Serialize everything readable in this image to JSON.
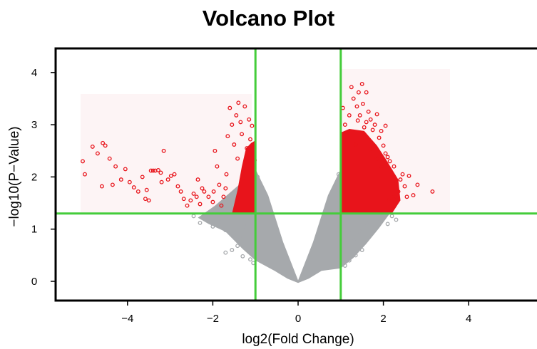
{
  "chart_data": {
    "type": "scatter",
    "title": "Volcano Plot",
    "xlabel": "log2(Fold Change)",
    "ylabel": "−log10(P−Value)",
    "xlim": [
      -5.6,
      5.6
    ],
    "ylim": [
      -0.3,
      4.5
    ],
    "x_ticks": [
      -4,
      -2,
      0,
      2,
      4
    ],
    "x_tick_labels": [
      "−4",
      "−2",
      "0",
      "2",
      "4"
    ],
    "y_ticks": [
      0,
      1,
      2,
      3,
      4
    ],
    "y_tick_labels": [
      "0",
      "1",
      "2",
      "3",
      "4"
    ],
    "grid": false,
    "thresholds": {
      "fold_change_log2": [
        -1,
        1
      ],
      "neg_log10_p": 1.3
    },
    "colors": {
      "significant": "#e8141b",
      "non_significant": "#a6a9ac",
      "threshold_lines": "#44cc3a",
      "axes": "#000000"
    },
    "series": [
      {
        "color": "#e8141b",
        "points": [
          [
            -5.05,
            2.3
          ],
          [
            -5.0,
            2.05
          ],
          [
            -4.82,
            2.58
          ],
          [
            -4.7,
            2.45
          ],
          [
            -4.58,
            2.65
          ],
          [
            -4.52,
            2.6
          ],
          [
            -4.42,
            2.35
          ],
          [
            -4.28,
            2.2
          ],
          [
            -4.15,
            1.95
          ],
          [
            -4.05,
            2.15
          ],
          [
            -3.95,
            1.9
          ],
          [
            -3.85,
            1.8
          ],
          [
            -3.75,
            1.72
          ],
          [
            -3.65,
            2.0
          ],
          [
            -3.55,
            1.75
          ],
          [
            -3.45,
            2.12
          ],
          [
            -3.4,
            2.12
          ],
          [
            -3.35,
            2.12
          ],
          [
            -3.28,
            2.13
          ],
          [
            -3.22,
            2.08
          ],
          [
            -3.15,
            2.5
          ],
          [
            -3.05,
            1.95
          ],
          [
            -2.98,
            2.02
          ],
          [
            -2.9,
            2.05
          ],
          [
            -2.82,
            1.82
          ],
          [
            -2.75,
            1.72
          ],
          [
            -2.68,
            1.58
          ],
          [
            -2.6,
            1.45
          ],
          [
            -2.52,
            1.55
          ],
          [
            -2.45,
            1.68
          ],
          [
            -2.38,
            1.62
          ],
          [
            -2.3,
            1.48
          ],
          [
            -2.2,
            1.72
          ],
          [
            -2.1,
            1.62
          ],
          [
            -2.0,
            1.52
          ],
          [
            -1.95,
            2.5
          ],
          [
            -1.9,
            2.2
          ],
          [
            -1.85,
            1.85
          ],
          [
            -1.8,
            1.45
          ],
          [
            -1.75,
            1.62
          ],
          [
            -1.7,
            1.78
          ],
          [
            -1.68,
            2.05
          ],
          [
            -1.65,
            2.78
          ],
          [
            -1.6,
            3.32
          ],
          [
            -1.55,
            3.0
          ],
          [
            -1.5,
            2.62
          ],
          [
            -1.45,
            3.18
          ],
          [
            -1.42,
            2.35
          ],
          [
            -1.4,
            3.42
          ],
          [
            -1.35,
            3.05
          ],
          [
            -1.32,
            2.82
          ],
          [
            -1.28,
            1.98
          ],
          [
            -1.25,
            3.35
          ],
          [
            -1.2,
            2.55
          ],
          [
            -1.15,
            3.1
          ],
          [
            -1.12,
            2.72
          ],
          [
            -1.08,
            2.98
          ],
          [
            -1.05,
            2.45
          ],
          [
            -1.02,
            2.32
          ],
          [
            -3.2,
            1.9
          ],
          [
            -4.35,
            1.85
          ],
          [
            -4.6,
            1.82
          ],
          [
            -2.35,
            1.95
          ],
          [
            -2.25,
            1.78
          ],
          [
            -1.98,
            1.72
          ],
          [
            -3.58,
            1.58
          ],
          [
            -3.5,
            1.55
          ],
          [
            1.05,
            3.32
          ],
          [
            1.1,
            3.0
          ],
          [
            1.15,
            2.85
          ],
          [
            1.2,
            3.18
          ],
          [
            1.25,
            3.72
          ],
          [
            1.3,
            3.5
          ],
          [
            1.35,
            2.62
          ],
          [
            1.38,
            3.35
          ],
          [
            1.42,
            3.62
          ],
          [
            1.45,
            3.18
          ],
          [
            1.5,
            3.78
          ],
          [
            1.55,
            2.95
          ],
          [
            1.6,
            3.62
          ],
          [
            1.65,
            3.25
          ],
          [
            1.7,
            2.52
          ],
          [
            1.75,
            2.9
          ],
          [
            1.8,
            3.0
          ],
          [
            1.85,
            2.35
          ],
          [
            1.9,
            2.75
          ],
          [
            1.95,
            2.2
          ],
          [
            2.0,
            2.6
          ],
          [
            2.05,
            2.45
          ],
          [
            2.1,
            2.38
          ],
          [
            2.15,
            2.3
          ],
          [
            2.2,
            2.05
          ],
          [
            2.25,
            2.2
          ],
          [
            2.3,
            1.92
          ],
          [
            2.35,
            1.72
          ],
          [
            2.4,
            1.95
          ],
          [
            2.45,
            2.05
          ],
          [
            2.5,
            1.82
          ],
          [
            2.6,
            2.02
          ],
          [
            2.7,
            1.65
          ],
          [
            2.8,
            1.85
          ],
          [
            3.15,
            1.72
          ],
          [
            1.6,
            3.05
          ],
          [
            1.7,
            3.1
          ],
          [
            1.85,
            3.2
          ],
          [
            1.95,
            2.88
          ],
          [
            2.05,
            2.98
          ],
          [
            1.4,
            3.08
          ],
          [
            1.52,
            3.4
          ],
          [
            2.25,
            1.62
          ],
          [
            2.55,
            1.62
          ],
          [
            2.12,
            1.55
          ]
        ]
      },
      {
        "color": "#a6a9ac",
        "points": [
          [
            -2.45,
            1.25
          ],
          [
            -2.3,
            1.12
          ],
          [
            -2.1,
            1.2
          ],
          [
            -2.0,
            1.05
          ],
          [
            -1.9,
            1.28
          ],
          [
            -1.8,
            1.15
          ],
          [
            -1.7,
            0.98
          ],
          [
            -1.6,
            1.22
          ],
          [
            -1.5,
            0.9
          ],
          [
            -1.35,
            0.82
          ],
          [
            -1.25,
            1.05
          ],
          [
            -1.15,
            0.78
          ],
          [
            -1.05,
            0.95
          ],
          [
            -1.7,
            0.55
          ],
          [
            -1.55,
            0.6
          ],
          [
            -1.42,
            0.68
          ],
          [
            -1.3,
            0.48
          ],
          [
            1.1,
            1.05
          ],
          [
            1.2,
            0.92
          ],
          [
            1.3,
            0.8
          ],
          [
            1.45,
            0.95
          ],
          [
            1.6,
            1.12
          ],
          [
            1.75,
            1.0
          ],
          [
            1.85,
            1.2
          ],
          [
            2.0,
            1.28
          ],
          [
            2.1,
            1.1
          ],
          [
            2.2,
            1.25
          ],
          [
            2.3,
            1.18
          ],
          [
            1.5,
            0.6
          ],
          [
            1.35,
            0.5
          ],
          [
            1.2,
            0.4
          ],
          [
            1.1,
            0.3
          ],
          [
            -1.05,
            0.35
          ],
          [
            -1.12,
            0.42
          ],
          [
            -0.98,
            1.9
          ],
          [
            -0.95,
            2.0
          ],
          [
            0.98,
            1.95
          ],
          [
            0.95,
            2.05
          ]
        ]
      }
    ]
  }
}
